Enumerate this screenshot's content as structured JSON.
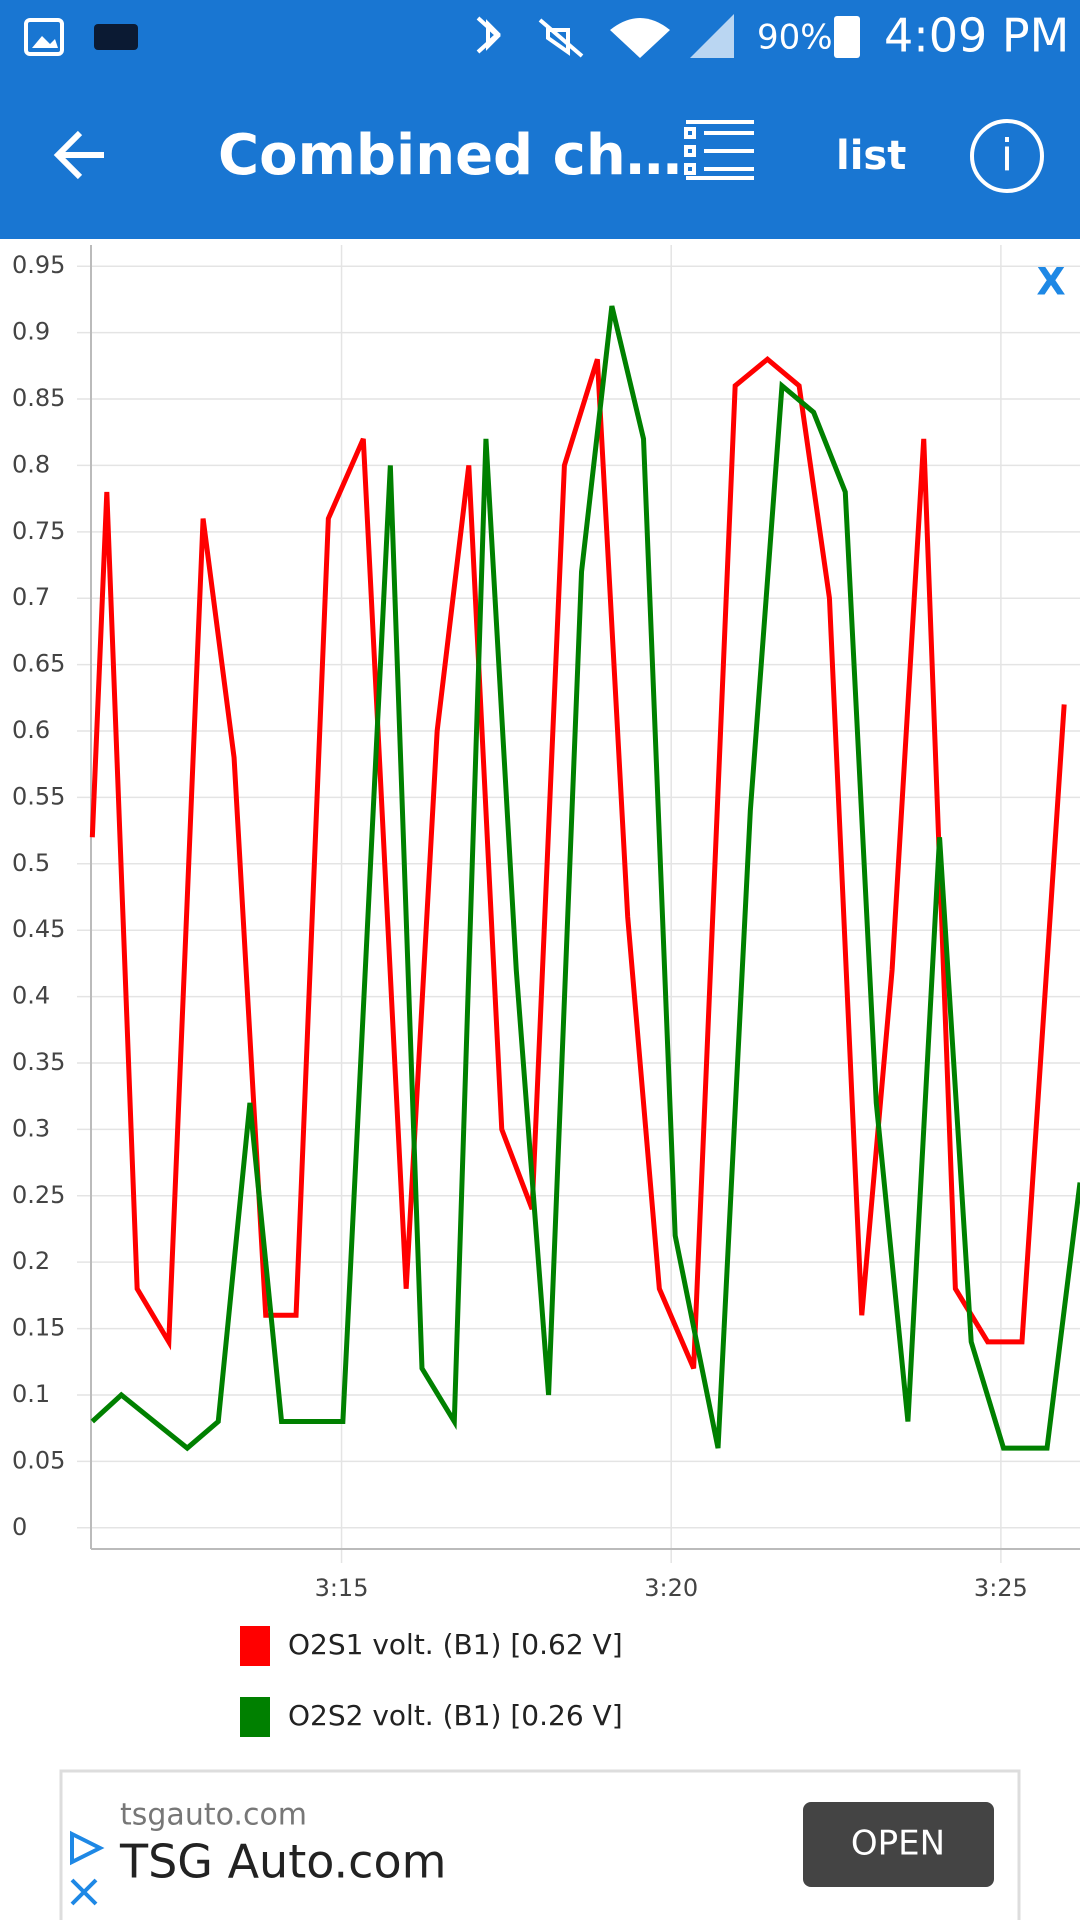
{
  "status_bar": {
    "battery": "90%",
    "time": "4:09 PM"
  },
  "app_bar": {
    "title": "Combined ch…",
    "action": "list"
  },
  "chart_close_label": "X",
  "chart_data": {
    "type": "line",
    "xlim": [
      11.2,
      26.2
    ],
    "xticks": [
      {
        "value": 15,
        "label": "3:15"
      },
      {
        "value": 20,
        "label": "3:20"
      },
      {
        "value": 25,
        "label": "3:25"
      }
    ],
    "ylim": [
      -0.016,
      0.966
    ],
    "yticks": [
      0,
      0.05,
      0.1,
      0.15,
      0.2,
      0.25,
      0.3,
      0.35,
      0.4,
      0.45,
      0.5,
      0.55,
      0.6,
      0.65,
      0.7,
      0.75,
      0.8,
      0.85,
      0.9,
      0.95
    ],
    "grid": true,
    "series": [
      {
        "name": "O2S1 volt. (B1) [0.62 V]",
        "color": "#ff0000",
        "x": [
          11.22,
          11.44,
          11.9,
          12.38,
          12.9,
          13.37,
          13.85,
          14.31,
          14.8,
          15.33,
          15.98,
          16.45,
          16.93,
          17.43,
          17.89,
          18.38,
          18.88,
          19.34,
          19.82,
          20.34,
          20.97,
          21.46,
          21.94,
          22.4,
          22.89,
          23.35,
          23.83,
          24.31,
          24.8,
          25.32,
          25.96
        ],
        "values": [
          0.52,
          0.78,
          0.18,
          0.14,
          0.76,
          0.58,
          0.16,
          0.16,
          0.76,
          0.82,
          0.18,
          0.6,
          0.8,
          0.3,
          0.24,
          0.8,
          0.88,
          0.46,
          0.18,
          0.12,
          0.86,
          0.88,
          0.86,
          0.7,
          0.16,
          0.42,
          0.82,
          0.18,
          0.14,
          0.14,
          0.62
        ]
      },
      {
        "name": "O2S2 volt. (B1) [0.26 V]",
        "color": "#008000",
        "x": [
          11.22,
          11.66,
          12.16,
          12.66,
          13.13,
          13.61,
          14.09,
          14.55,
          15.02,
          15.74,
          16.22,
          16.71,
          17.19,
          17.65,
          18.14,
          18.64,
          19.1,
          19.58,
          20.06,
          20.71,
          21.2,
          21.68,
          22.16,
          22.64,
          23.11,
          23.59,
          24.07,
          24.55,
          25.04,
          25.7,
          26.2
        ],
        "values": [
          0.08,
          0.1,
          0.08,
          0.06,
          0.08,
          0.32,
          0.08,
          0.08,
          0.08,
          0.8,
          0.12,
          0.08,
          0.82,
          0.42,
          0.1,
          0.72,
          0.92,
          0.82,
          0.22,
          0.06,
          0.54,
          0.86,
          0.84,
          0.78,
          0.32,
          0.08,
          0.52,
          0.14,
          0.06,
          0.06,
          0.26
        ]
      }
    ]
  },
  "ad": {
    "domain": "tsgauto.com",
    "title": "TSG Auto.com",
    "button": "OPEN"
  }
}
